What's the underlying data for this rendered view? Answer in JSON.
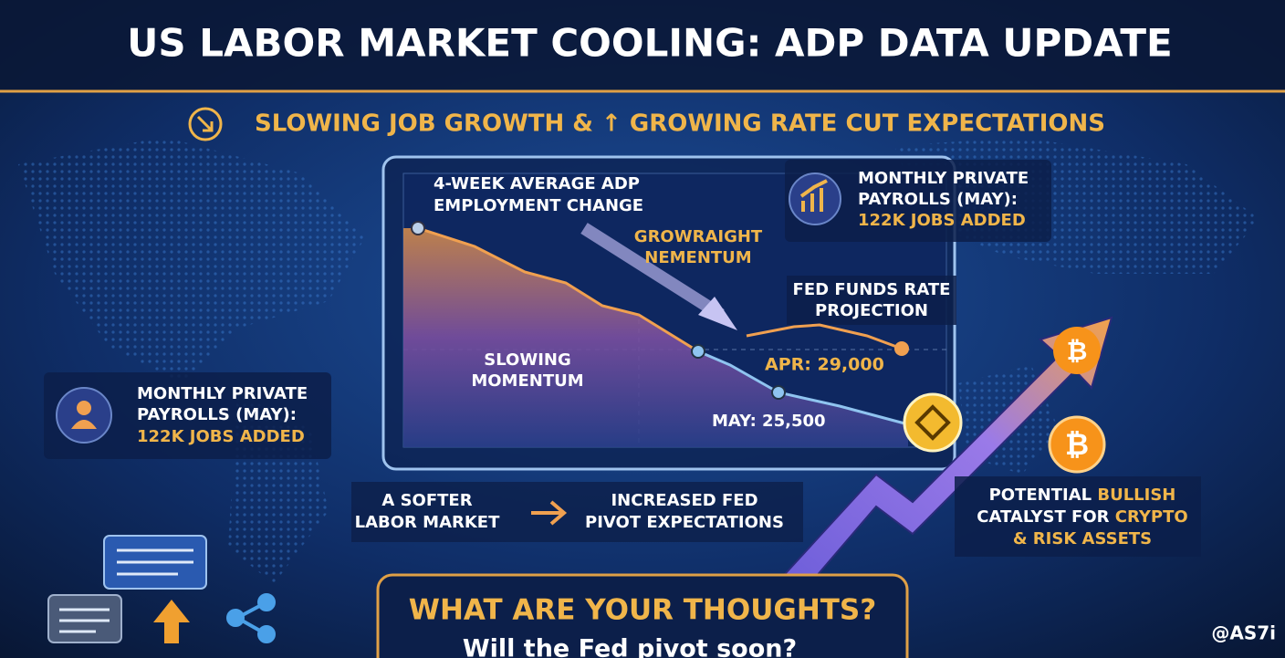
{
  "header": {
    "title": "US LABOR MARKET COOLING: ADP DATA UPDATE",
    "subtitle": "SLOWING JOB GROWTH & ↑ GROWING RATE CUT EXPECTATIONS"
  },
  "chart": {
    "series_label": [
      "4-WEEK AVERAGE ADP",
      "EMPLOYMENT CHANGE"
    ],
    "momentum_label": [
      "GROWRAIGHT",
      "NEMENTUM"
    ],
    "slowing_label": [
      "SLOWING",
      "MOMENTUM"
    ],
    "fed_label": [
      "FED FUNDS RATE",
      "PROJECTION"
    ],
    "apr_label": "APR: 29,000",
    "may_label": "MAY: 25,500"
  },
  "callout_right": {
    "lines": [
      "MONTHLY PRIVATE",
      "PAYROLLS (MAY):",
      "122K JOBS ADDED"
    ]
  },
  "callout_left": {
    "lines": [
      "MONTHLY PRIVATE",
      "PAYROLLS (MAY):",
      "122K JOBS ADDED"
    ]
  },
  "flow": {
    "from": [
      "A SOFTER",
      "LABOR MARKET"
    ],
    "to": [
      "INCREASED FED",
      "PIVOT EXPECTATIONS"
    ]
  },
  "bullish": {
    "line1": [
      "POTENTIAL ",
      "BULLISH"
    ],
    "line2": [
      "CATALYST FOR ",
      "CRYPTO"
    ],
    "line3": "& RISK ASSETS"
  },
  "cta": {
    "title": "WHAT ARE YOUR THOUGHTS?",
    "question": "Will the Fed pivot soon?"
  },
  "watermark": "@AS7i"
}
